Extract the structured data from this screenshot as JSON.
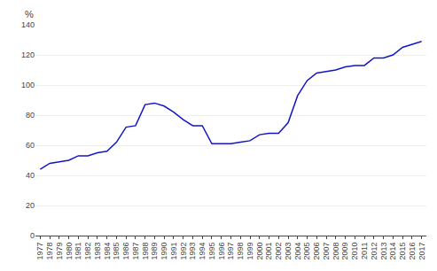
{
  "chart_data": {
    "type": "line",
    "ylabel": "%",
    "x": [
      1977,
      1978,
      1979,
      1980,
      1981,
      1982,
      1983,
      1984,
      1985,
      1986,
      1987,
      1988,
      1989,
      1990,
      1991,
      1992,
      1993,
      1994,
      1995,
      1996,
      1997,
      1998,
      1999,
      2000,
      2001,
      2002,
      2003,
      2004,
      2005,
      2006,
      2007,
      2008,
      2009,
      2010,
      2011,
      2012,
      2013,
      2014,
      2015,
      2016,
      2017
    ],
    "values": [
      44,
      48,
      49,
      50,
      53,
      53,
      55,
      56,
      62,
      72,
      73,
      87,
      88,
      86,
      82,
      77,
      73,
      73,
      61,
      61,
      61,
      62,
      63,
      67,
      68,
      68,
      75,
      93,
      103,
      108,
      109,
      110,
      112,
      113,
      113,
      118,
      118,
      120,
      125,
      127,
      129
    ],
    "color": "#1515c8",
    "xlim": [
      1976.5,
      2017.5
    ],
    "xticks": [
      1977,
      1978,
      1979,
      1980,
      1981,
      1982,
      1983,
      1984,
      1985,
      1986,
      1987,
      1988,
      1989,
      1990,
      1991,
      1992,
      1993,
      1994,
      1995,
      1996,
      1997,
      1998,
      1999,
      2000,
      2001,
      2002,
      2003,
      2004,
      2005,
      2006,
      2007,
      2008,
      2009,
      2010,
      2011,
      2012,
      2013,
      2014,
      2015,
      2016,
      2017
    ],
    "ylim": [
      0,
      140
    ],
    "yticks": [
      0,
      20,
      40,
      60,
      80,
      100,
      120,
      140
    ],
    "grid": "y"
  }
}
